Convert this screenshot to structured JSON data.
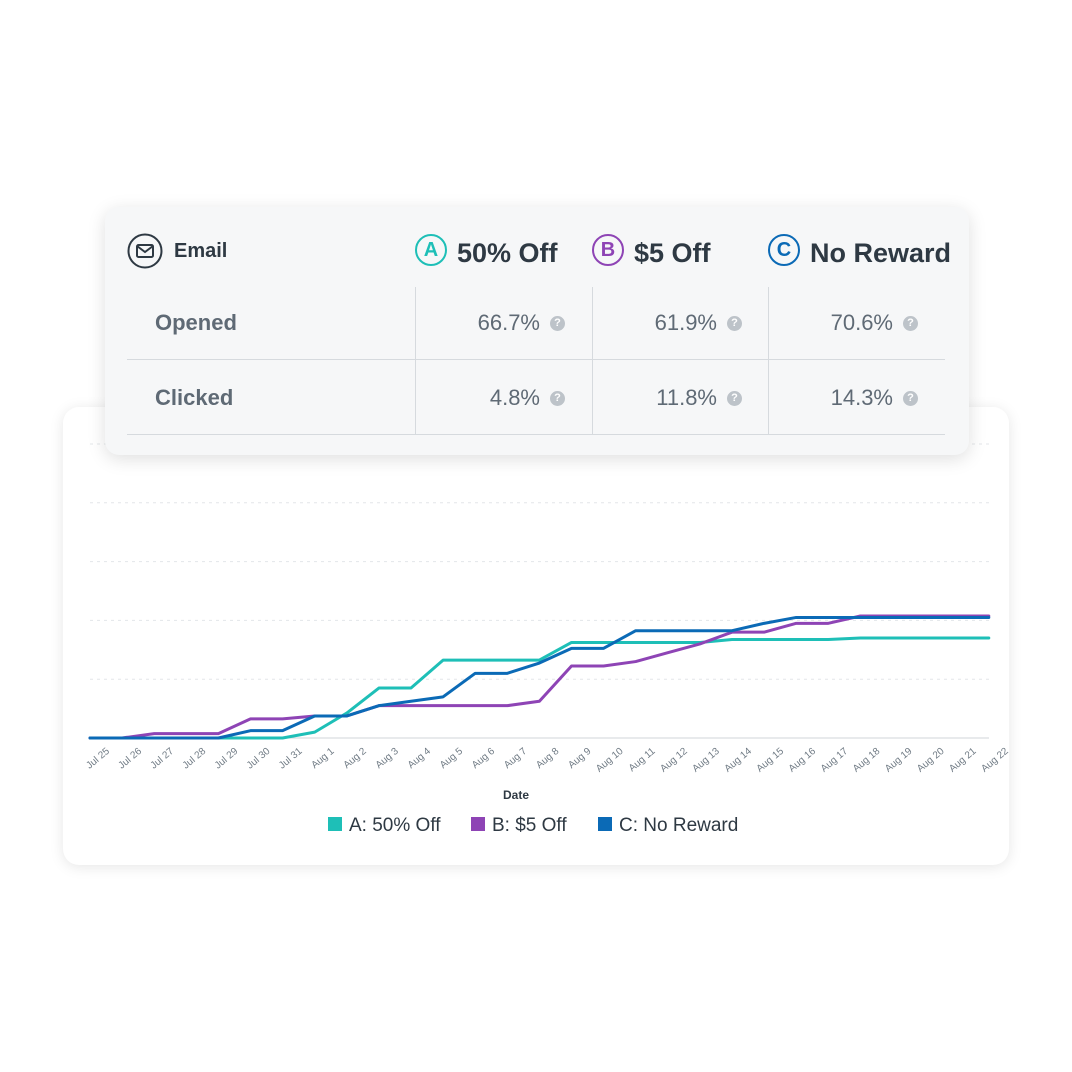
{
  "table": {
    "channel_label": "Email",
    "variants": [
      {
        "letter": "A",
        "name": "50% Off",
        "color": "#1ebfb7"
      },
      {
        "letter": "B",
        "name": "$5 Off",
        "color": "#8e44b5"
      },
      {
        "letter": "C",
        "name": "No Reward",
        "color": "#0b6ab6"
      }
    ],
    "rows": [
      {
        "label": "Opened",
        "values": [
          "66.7%",
          "61.9%",
          "70.6%"
        ]
      },
      {
        "label": "Clicked",
        "values": [
          "4.8%",
          "11.8%",
          "14.3%"
        ]
      }
    ],
    "help_glyph": "?"
  },
  "chart_data": {
    "type": "line",
    "xlabel": "Date",
    "ylabel": "",
    "title": "",
    "grid": true,
    "legend_position": "bottom",
    "ylim": [
      0,
      1.0
    ],
    "x": [
      "Jul 25",
      "Jul 26",
      "Jul 27",
      "Jul 28",
      "Jul 29",
      "Jul 30",
      "Jul 31",
      "Aug 1",
      "Aug 2",
      "Aug 3",
      "Aug 4",
      "Aug 5",
      "Aug 6",
      "Aug 7",
      "Aug 8",
      "Aug 9",
      "Aug 10",
      "Aug 11",
      "Aug 12",
      "Aug 13",
      "Aug 14",
      "Aug 15",
      "Aug 16",
      "Aug 17",
      "Aug 18",
      "Aug 19",
      "Aug 20",
      "Aug 21",
      "Aug 22"
    ],
    "series": [
      {
        "name": "A: 50% Off",
        "color": "#1ebfb7",
        "values": [
          0,
          0,
          0,
          0,
          0,
          0,
          0,
          0.02,
          0.085,
          0.17,
          0.17,
          0.265,
          0.265,
          0.265,
          0.265,
          0.325,
          0.325,
          0.325,
          0.325,
          0.325,
          0.335,
          0.335,
          0.335,
          0.335,
          0.34,
          0.34,
          0.34,
          0.34,
          0.34
        ]
      },
      {
        "name": "B: $5 Off",
        "color": "#8e44b5",
        "values": [
          0,
          0,
          0.015,
          0.015,
          0.015,
          0.065,
          0.065,
          0.075,
          0.075,
          0.11,
          0.11,
          0.11,
          0.11,
          0.11,
          0.125,
          0.245,
          0.245,
          0.26,
          0.29,
          0.32,
          0.36,
          0.36,
          0.39,
          0.39,
          0.415,
          0.415,
          0.415,
          0.415,
          0.415
        ]
      },
      {
        "name": "C: No Reward",
        "color": "#0b6ab6",
        "values": [
          0,
          0,
          0,
          0,
          0,
          0.025,
          0.025,
          0.075,
          0.075,
          0.11,
          0.125,
          0.14,
          0.22,
          0.22,
          0.255,
          0.305,
          0.305,
          0.365,
          0.365,
          0.365,
          0.365,
          0.39,
          0.41,
          0.41,
          0.41,
          0.41,
          0.41,
          0.41,
          0.41
        ]
      }
    ]
  }
}
